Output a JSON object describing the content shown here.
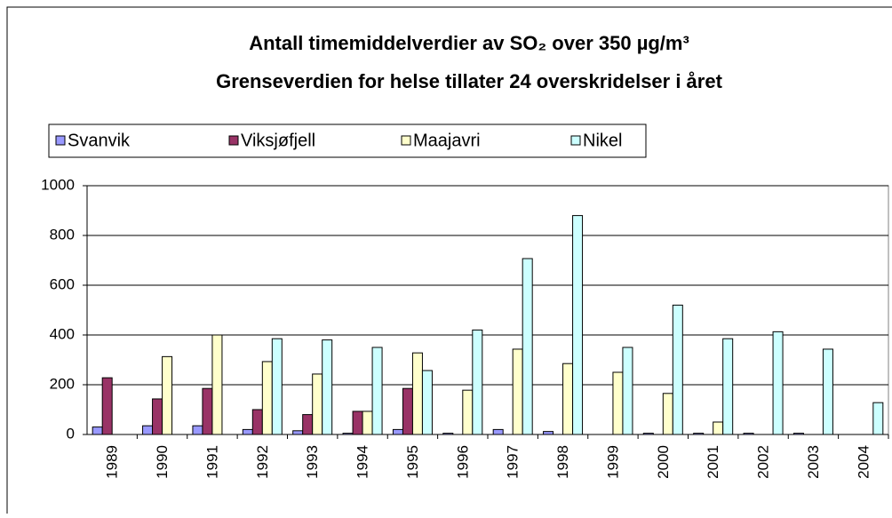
{
  "chart_data": {
    "type": "bar",
    "title": "Antall timemiddelverdier av SO₂ over 350 µg/m³",
    "subtitle": "Grenseverdien for helse tillater 24 overskridelser i året",
    "categories": [
      "1989",
      "1990",
      "1991",
      "1992",
      "1993",
      "1994",
      "1995",
      "1996",
      "1997",
      "1998",
      "1999",
      "2000",
      "2001",
      "2002",
      "2003",
      "2004"
    ],
    "series": [
      {
        "name": "Svanvik",
        "color": "#9999ff",
        "values": [
          30,
          35,
          35,
          20,
          15,
          5,
          20,
          5,
          20,
          12,
          null,
          5,
          5,
          5,
          5,
          null
        ]
      },
      {
        "name": "Viksjøfjell",
        "color": "#993366",
        "values": [
          228,
          143,
          185,
          100,
          80,
          93,
          185,
          null,
          null,
          null,
          null,
          null,
          null,
          null,
          null,
          null
        ]
      },
      {
        "name": "Maajavri",
        "color": "#ffffcc",
        "values": [
          null,
          313,
          400,
          293,
          243,
          93,
          328,
          178,
          343,
          285,
          250,
          165,
          50,
          null,
          null,
          null
        ]
      },
      {
        "name": "Nikel",
        "color": "#ccffff",
        "values": [
          null,
          null,
          null,
          385,
          380,
          350,
          257,
          420,
          707,
          880,
          350,
          520,
          385,
          413,
          343,
          128
        ]
      }
    ],
    "ylim": [
      0,
      1000
    ],
    "yticks": [
      0,
      200,
      400,
      600,
      800,
      1000
    ],
    "grid": true,
    "legend": "top"
  }
}
